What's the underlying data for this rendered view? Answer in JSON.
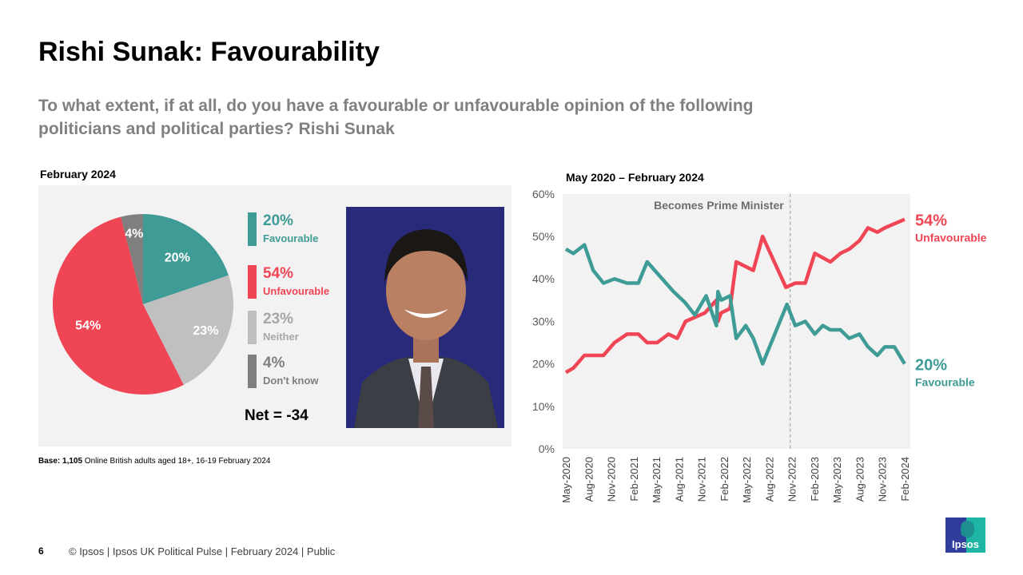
{
  "title": "Rishi Sunak: Favourability",
  "question": "To what extent, if at all, do you have a favourable or unfavourable opinion of the following politicians and political parties? Rishi Sunak",
  "pie_period": "February 2024",
  "line_period": "May 2020 – February 2024",
  "net": "Net = -34",
  "base": {
    "label": "Base:",
    "n": "1,105",
    "text": " Online British adults aged 18+,  16-19 February 2024"
  },
  "footer": "© Ipsos |  Ipsos UK Political Pulse | February 2024 | Public",
  "page_number": "6",
  "logo_text": "Ipsos",
  "colors": {
    "favourable": "#3f9b96",
    "unfavourable": "#f04555",
    "neither": "#c0c0c0",
    "dont_know": "#7f7f7f"
  },
  "chart_data": [
    {
      "type": "pie",
      "title": "February 2024",
      "slices": [
        {
          "name": "Favourable",
          "value": 20,
          "label": "20%",
          "color": "#3f9b96"
        },
        {
          "name": "Neither",
          "value": 23,
          "label": "23%",
          "color": "#c0c0c0"
        },
        {
          "name": "Unfavourable",
          "value": 54,
          "label": "54%",
          "color": "#f04555"
        },
        {
          "name": "Don't know",
          "value": 4,
          "label": "4%",
          "color": "#7f7f7f"
        }
      ],
      "legend": [
        {
          "pct": "20%",
          "name": "Favourable",
          "color": "#3f9b96"
        },
        {
          "pct": "54%",
          "name": "Unfavourable",
          "color": "#f04555"
        },
        {
          "pct": "23%",
          "name": "Neither",
          "color": "#bfbfbf"
        },
        {
          "pct": "4%",
          "name": "Don't know",
          "color": "#7f7f7f"
        }
      ]
    },
    {
      "type": "line",
      "title": "May 2020 – February 2024",
      "ylim": [
        0,
        60
      ],
      "yticks": [
        "0%",
        "10%",
        "20%",
        "30%",
        "40%",
        "50%",
        "60%"
      ],
      "xticks": [
        "May-2020",
        "Aug-2020",
        "Nov-2020",
        "Feb-2021",
        "May-2021",
        "Aug-2021",
        "Nov-2021",
        "Feb-2022",
        "May-2022",
        "Aug-2022",
        "Nov-2022",
        "Feb-2023",
        "May-2023",
        "Aug-2023",
        "Nov-2023",
        "Feb-2024"
      ],
      "grid": false,
      "annotation": {
        "text": "Becomes Prime Minister",
        "date": "2022-10-25"
      },
      "series": [
        {
          "name": "Unfavourable",
          "end_label": "54%",
          "color": "#f04555",
          "points": [
            [
              "2020-05-01",
              18
            ],
            [
              "2020-06-01",
              19
            ],
            [
              "2020-07-15",
              22
            ],
            [
              "2020-10-01",
              22
            ],
            [
              "2020-11-15",
              25
            ],
            [
              "2021-01-05",
              27
            ],
            [
              "2021-02-20",
              27
            ],
            [
              "2021-03-25",
              25
            ],
            [
              "2021-05-05",
              25
            ],
            [
              "2021-06-20",
              27
            ],
            [
              "2021-07-25",
              26
            ],
            [
              "2021-08-28",
              30
            ],
            [
              "2021-11-15",
              32
            ],
            [
              "2022-01-01",
              35
            ],
            [
              "2022-01-07",
              30
            ],
            [
              "2022-01-20",
              32
            ],
            [
              "2022-02-25",
              33
            ],
            [
              "2022-03-20",
              44
            ],
            [
              "2022-05-28",
              42
            ],
            [
              "2022-07-05",
              50
            ],
            [
              "2022-10-08",
              38
            ],
            [
              "2022-11-15",
              39
            ],
            [
              "2022-12-25",
              39
            ],
            [
              "2023-02-03",
              46
            ],
            [
              "2023-04-05",
              44
            ],
            [
              "2023-05-15",
              46
            ],
            [
              "2023-06-20",
              47
            ],
            [
              "2023-08-01",
              49
            ],
            [
              "2023-09-05",
              52
            ],
            [
              "2023-10-12",
              51
            ],
            [
              "2023-11-12",
              52
            ],
            [
              "2024-02-01",
              54
            ]
          ]
        },
        {
          "name": "Favourable",
          "end_label": "20%",
          "color": "#3f9b96",
          "points": [
            [
              "2020-05-01",
              47
            ],
            [
              "2020-06-01",
              46
            ],
            [
              "2020-07-15",
              48
            ],
            [
              "2020-08-20",
              42
            ],
            [
              "2020-10-01",
              39
            ],
            [
              "2020-11-15",
              40
            ],
            [
              "2021-01-05",
              39
            ],
            [
              "2021-02-20",
              39
            ],
            [
              "2021-03-25",
              44
            ],
            [
              "2021-07-10",
              37
            ],
            [
              "2021-08-25",
              34.5
            ],
            [
              "2021-10-05",
              31.5
            ],
            [
              "2021-11-20",
              36
            ],
            [
              "2022-01-01",
              29
            ],
            [
              "2022-01-07",
              37
            ],
            [
              "2022-01-20",
              35
            ],
            [
              "2022-02-25",
              36
            ],
            [
              "2022-03-20",
              26
            ],
            [
              "2022-04-28",
              29
            ],
            [
              "2022-05-28",
              26
            ],
            [
              "2022-07-05",
              20
            ],
            [
              "2022-10-12",
              34
            ],
            [
              "2022-11-15",
              29
            ],
            [
              "2022-12-25",
              30
            ],
            [
              "2023-02-03",
              27
            ],
            [
              "2023-03-05",
              29
            ],
            [
              "2023-04-05",
              28
            ],
            [
              "2023-05-15",
              28
            ],
            [
              "2023-06-20",
              26
            ],
            [
              "2023-08-01",
              27
            ],
            [
              "2023-09-05",
              24
            ],
            [
              "2023-10-12",
              22
            ],
            [
              "2023-11-12",
              24
            ],
            [
              "2023-12-20",
              24
            ],
            [
              "2024-02-01",
              20
            ]
          ]
        }
      ]
    }
  ]
}
